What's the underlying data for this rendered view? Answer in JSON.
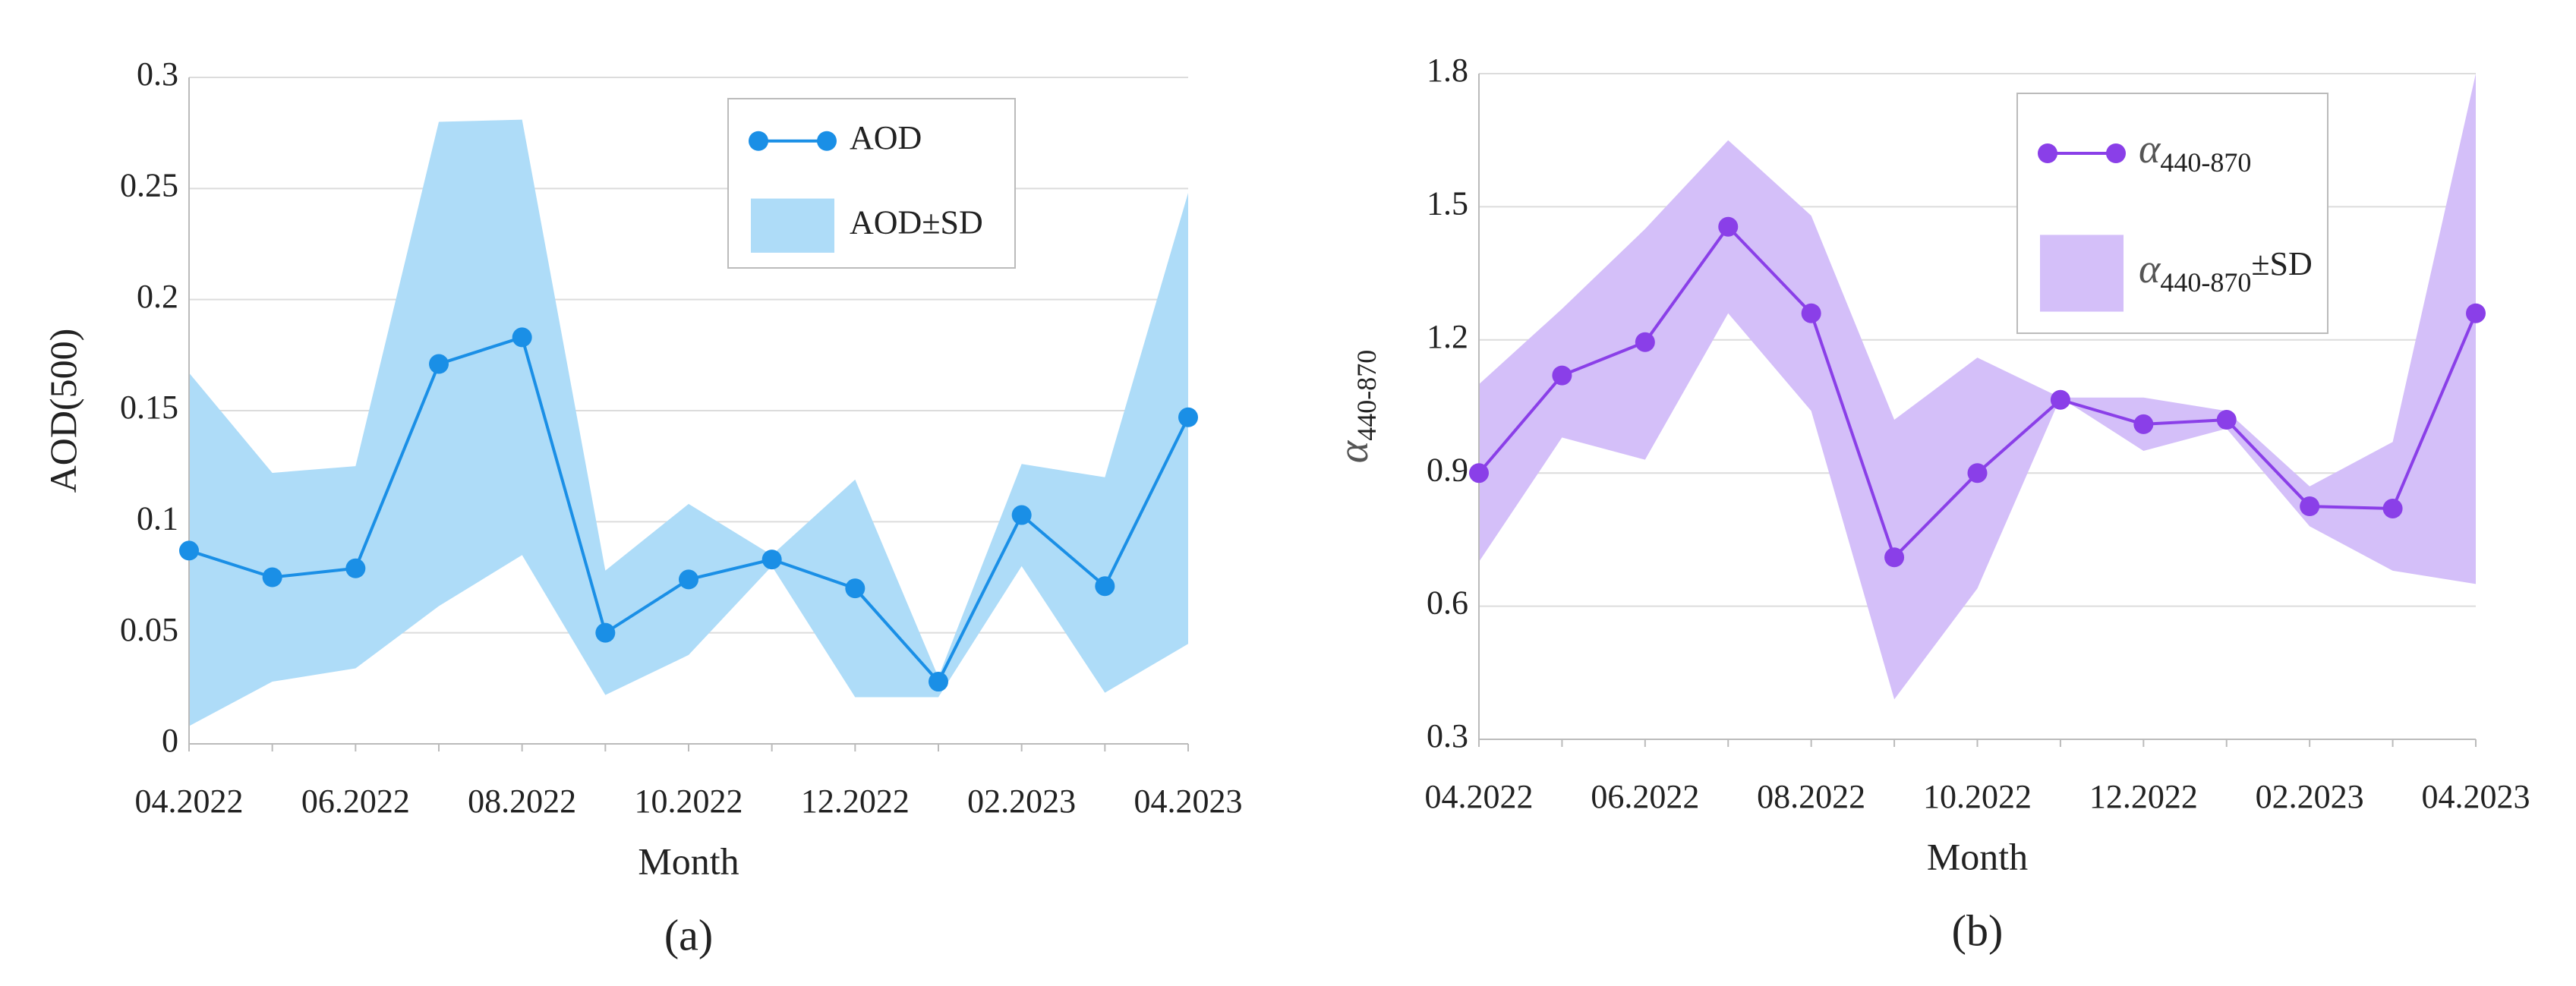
{
  "chart_data": [
    {
      "type": "line",
      "panel_label": "(a)",
      "xlabel": "Month",
      "ylabel": "AOD(500)",
      "categories": [
        "04.2022",
        null,
        "06.2022",
        null,
        "08.2022",
        null,
        "10.2022",
        null,
        "12.2022",
        null,
        "02.2023",
        null,
        "04.2023"
      ],
      "series": [
        {
          "name": "AOD",
          "color": "#1a8fe6",
          "values": [
            0.087,
            0.075,
            0.079,
            0.171,
            0.183,
            0.05,
            0.074,
            0.083,
            0.07,
            0.028,
            0.103,
            0.071,
            0.147
          ]
        },
        {
          "name": "AOD",
          "name_suffix": "±SD",
          "color": "#aedcf8",
          "upper": [
            0.167,
            0.122,
            0.125,
            0.28,
            0.281,
            0.078,
            0.108,
            0.085,
            0.119,
            0.03,
            0.126,
            0.12,
            0.248
          ],
          "lower": [
            0.008,
            0.028,
            0.034,
            0.062,
            0.085,
            0.022,
            0.04,
            0.08,
            0.021,
            0.021,
            0.08,
            0.023,
            0.045
          ]
        }
      ],
      "ylim": [
        0,
        0.3
      ],
      "yticks": [
        0,
        0.05,
        0.1,
        0.15,
        0.2,
        0.25,
        0.3
      ],
      "grid": true,
      "legend": "upper right"
    },
    {
      "type": "line",
      "panel_label": "(b)",
      "xlabel": "Month",
      "ylabel": "α",
      "ylabel_sub": "440-870",
      "categories": [
        "04.2022",
        null,
        "06.2022",
        null,
        "08.2022",
        null,
        "10.2022",
        null,
        "12.2022",
        null,
        "02.2023",
        null,
        "04.2023"
      ],
      "series": [
        {
          "name": "α",
          "name_sub": "440-870",
          "color": "#8a3fe8",
          "values": [
            0.9,
            1.12,
            1.195,
            1.455,
            1.26,
            0.71,
            0.9,
            1.065,
            1.01,
            1.02,
            0.825,
            0.82,
            1.26
          ]
        },
        {
          "name": "α",
          "name_sub": "440-870",
          "name_suffix": "±SD",
          "color": "#d4bff9",
          "upper": [
            1.1,
            1.27,
            1.45,
            1.65,
            1.48,
            1.02,
            1.16,
            1.07,
            1.07,
            1.04,
            0.87,
            0.97,
            1.8
          ],
          "lower": [
            0.7,
            0.98,
            0.93,
            1.26,
            1.04,
            0.39,
            0.64,
            1.07,
            0.95,
            1.0,
            0.78,
            0.68,
            0.65
          ]
        }
      ],
      "ylim": [
        0.3,
        1.8
      ],
      "yticks": [
        0.3,
        0.6,
        0.9,
        1.2,
        1.5,
        1.8
      ],
      "grid": true,
      "legend": "upper right"
    }
  ]
}
